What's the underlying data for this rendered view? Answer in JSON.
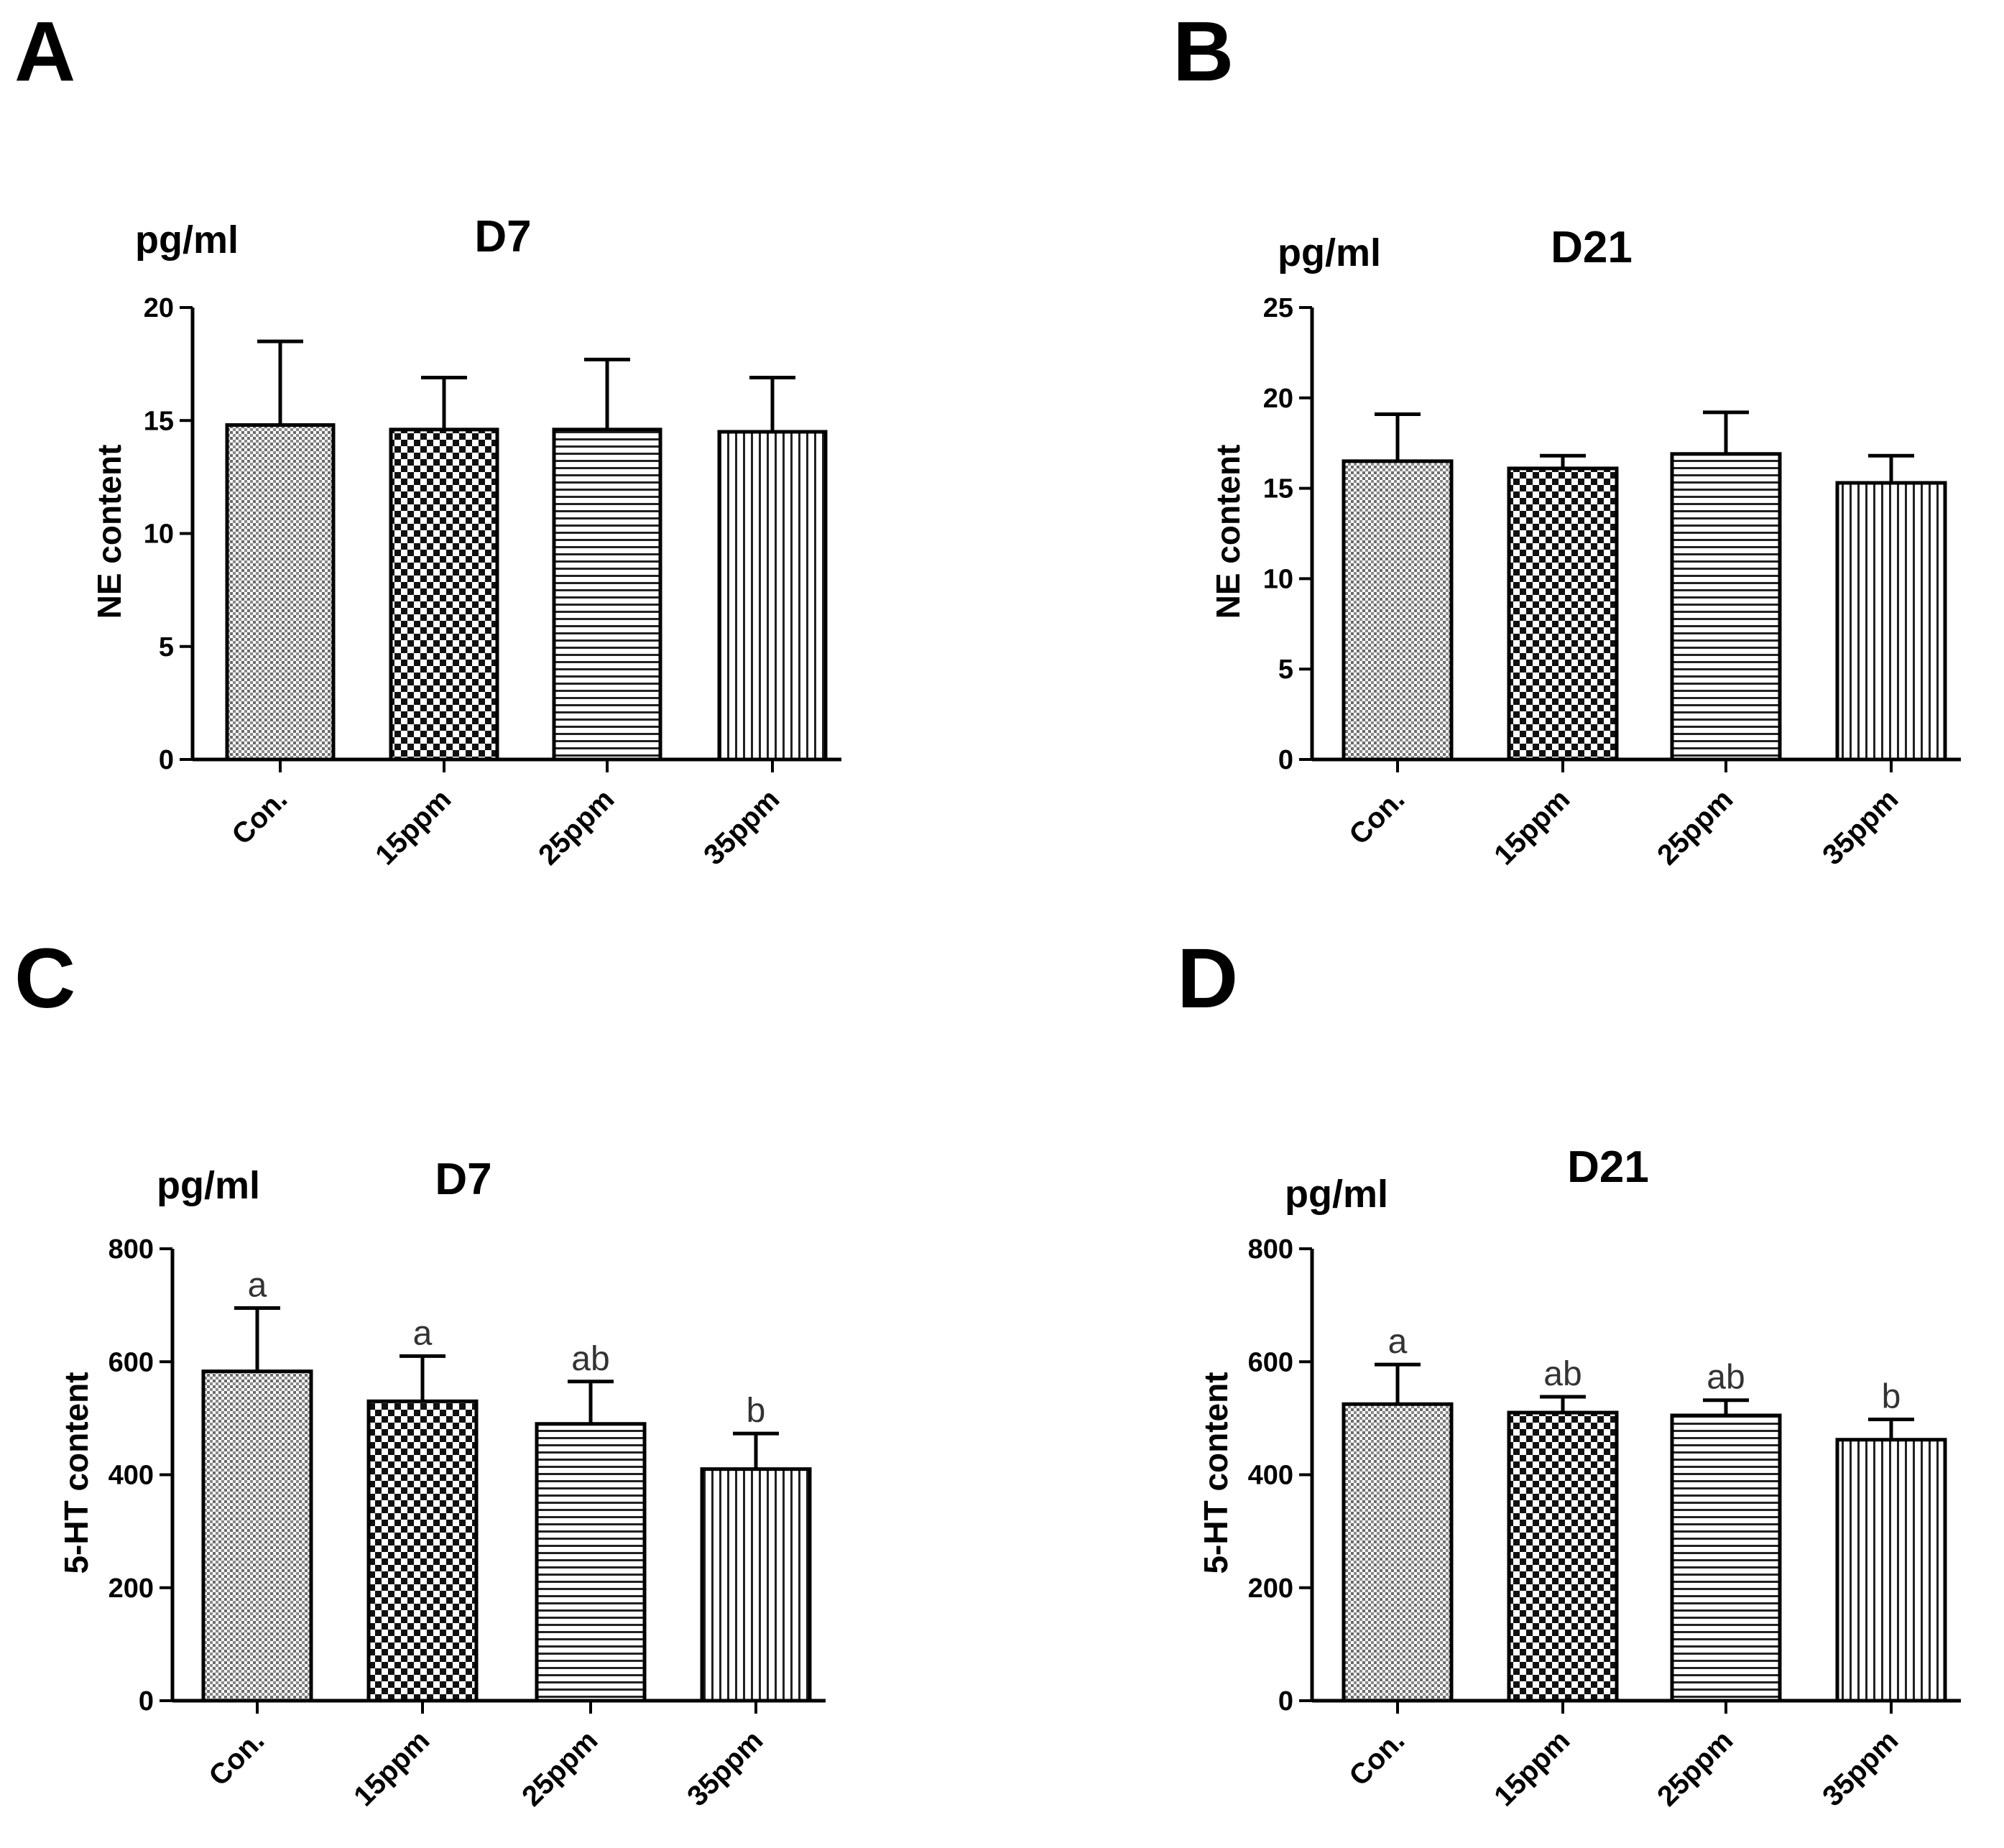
{
  "chart_data": [
    {
      "panel": "A",
      "type": "bar",
      "title": "D7",
      "unit": "pg/ml",
      "ylabel": "NE content",
      "xlabel": "",
      "categories": [
        "Con.",
        "15ppm",
        "25ppm",
        "35ppm"
      ],
      "patterns": [
        "dense-grid",
        "checker",
        "hlines",
        "vlines"
      ],
      "values": [
        14.8,
        14.6,
        14.6,
        14.5
      ],
      "errors": [
        3.7,
        2.3,
        3.1,
        2.4
      ],
      "letters": [
        "",
        "",
        "",
        ""
      ],
      "ylim": [
        0,
        20
      ],
      "yticks": [
        "0",
        "5",
        "10",
        "15",
        "20"
      ],
      "yticks_values": [
        0,
        5,
        10,
        15,
        20
      ]
    },
    {
      "panel": "B",
      "type": "bar",
      "title": "D21",
      "unit": "pg/ml",
      "ylabel": "NE content",
      "xlabel": "",
      "categories": [
        "Con.",
        "15ppm",
        "25ppm",
        "35ppm"
      ],
      "patterns": [
        "dense-grid",
        "checker",
        "hlines",
        "vlines"
      ],
      "values": [
        16.5,
        16.1,
        16.9,
        15.3
      ],
      "errors": [
        2.6,
        0.7,
        2.3,
        1.5
      ],
      "letters": [
        "",
        "",
        "",
        ""
      ],
      "ylim": [
        0,
        25
      ],
      "yticks": [
        "0",
        "5",
        "10",
        "15",
        "20",
        "25"
      ],
      "yticks_values": [
        0,
        5,
        10,
        15,
        20,
        25
      ]
    },
    {
      "panel": "C",
      "type": "bar",
      "title": "D7",
      "unit": "pg/ml",
      "ylabel": "5-HT content",
      "xlabel": "",
      "categories": [
        "Con.",
        "15ppm",
        "25ppm",
        "35ppm"
      ],
      "patterns": [
        "dense-grid",
        "checker",
        "hlines",
        "vlines"
      ],
      "values": [
        583,
        530,
        490,
        410
      ],
      "errors": [
        112,
        80,
        75,
        63
      ],
      "letters": [
        "a",
        "a",
        "ab",
        "b"
      ],
      "ylim": [
        0,
        800
      ],
      "yticks": [
        "0",
        "200",
        "400",
        "600",
        "800"
      ],
      "yticks_values": [
        0,
        200,
        400,
        600,
        800
      ]
    },
    {
      "panel": "D",
      "type": "bar",
      "title": "D21",
      "unit": "pg/ml",
      "ylabel": "5-HT content",
      "xlabel": "",
      "categories": [
        "Con.",
        "15ppm",
        "25ppm",
        "35ppm"
      ],
      "patterns": [
        "dense-grid",
        "checker",
        "hlines",
        "vlines"
      ],
      "values": [
        525,
        510,
        505,
        462
      ],
      "errors": [
        70,
        28,
        27,
        36
      ],
      "letters": [
        "a",
        "ab",
        "ab",
        "b"
      ],
      "ylim": [
        0,
        800
      ],
      "yticks": [
        "0",
        "200",
        "400",
        "600",
        "800"
      ],
      "yticks_values": [
        0,
        200,
        400,
        600,
        800
      ]
    }
  ]
}
